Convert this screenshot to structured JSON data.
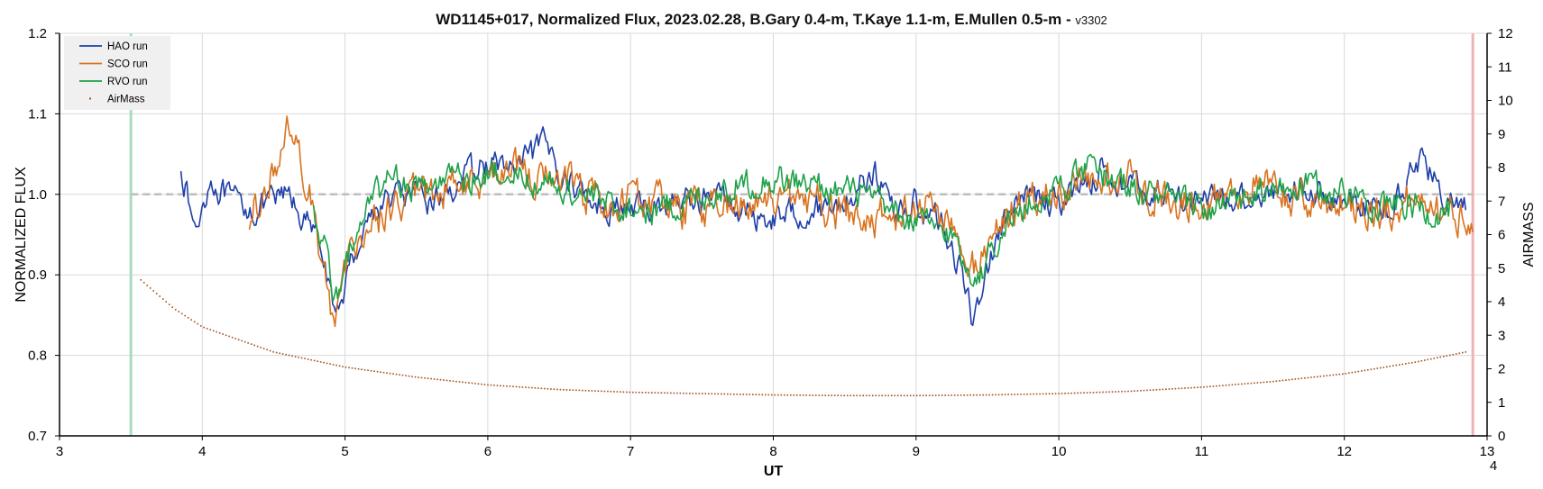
{
  "chart_data": {
    "type": "line",
    "title": "WD1145+017, Normalized Flux, 2023.02.28, B.Gary 0.4-m, T.Kaye 1.1-m, E.Mullen 0.5-m -",
    "title_suffix": "v3302",
    "xlabel": "UT",
    "ylabel": "NORMALIZED FLUX",
    "y2label": "AIRMASS",
    "xlim": [
      3,
      13
    ],
    "ylim": [
      0.7,
      1.2
    ],
    "y2lim": [
      0,
      12
    ],
    "x_ticks": [
      "3",
      "4",
      "5",
      "6",
      "7",
      "8",
      "9",
      "10",
      "11",
      "12",
      "13"
    ],
    "y_ticks": [
      "0.7",
      "0.8",
      "0.9",
      "1.0",
      "1.1",
      "1.2"
    ],
    "y2_ticks": [
      "0",
      "1",
      "2",
      "3",
      "4",
      "5",
      "6",
      "7",
      "8",
      "9",
      "10",
      "11",
      "12"
    ],
    "corner_note": "4",
    "grid": true,
    "legend_position": "top-left",
    "reference_line": {
      "y": 1.0,
      "color": "#bdbdbd"
    },
    "vertical_markers": [
      {
        "x": 3.5,
        "color": "#a8dcc4"
      },
      {
        "x": 12.9,
        "color": "#eeb4b4"
      }
    ],
    "series": [
      {
        "name": "HAO run",
        "color": "#1f3fa8",
        "x_start": 3.85,
        "x_end": 12.85,
        "anchors": [
          [
            3.85,
            1.04
          ],
          [
            3.95,
            0.95
          ],
          [
            4.05,
            1.02
          ],
          [
            4.2,
            0.99
          ],
          [
            4.4,
            0.98
          ],
          [
            4.6,
            1.0
          ],
          [
            4.75,
            0.96
          ],
          [
            4.85,
            0.93
          ],
          [
            4.92,
            0.84
          ],
          [
            5.0,
            0.89
          ],
          [
            5.15,
            0.97
          ],
          [
            5.35,
            1.0
          ],
          [
            5.6,
            0.99
          ],
          [
            5.85,
            1.02
          ],
          [
            6.0,
            1.04
          ],
          [
            6.2,
            1.03
          ],
          [
            6.4,
            1.06
          ],
          [
            6.55,
            1.02
          ],
          [
            6.75,
            0.99
          ],
          [
            7.0,
            0.98
          ],
          [
            7.3,
            0.99
          ],
          [
            7.6,
            1.0
          ],
          [
            7.9,
            0.97
          ],
          [
            8.2,
            0.98
          ],
          [
            8.5,
            0.99
          ],
          [
            8.7,
            1.03
          ],
          [
            8.85,
            0.98
          ],
          [
            9.0,
            0.99
          ],
          [
            9.2,
            0.96
          ],
          [
            9.32,
            0.9
          ],
          [
            9.4,
            0.84
          ],
          [
            9.48,
            0.9
          ],
          [
            9.6,
            0.96
          ],
          [
            9.8,
            1.0
          ],
          [
            10.0,
            0.99
          ],
          [
            10.3,
            1.03
          ],
          [
            10.5,
            1.01
          ],
          [
            10.8,
            1.0
          ],
          [
            11.1,
            0.99
          ],
          [
            11.4,
            1.0
          ],
          [
            11.7,
            1.01
          ],
          [
            12.0,
            0.99
          ],
          [
            12.3,
            0.98
          ],
          [
            12.55,
            1.05
          ],
          [
            12.7,
            0.99
          ],
          [
            12.85,
            0.98
          ]
        ],
        "noise": 0.018
      },
      {
        "name": "SCO run",
        "color": "#d9731f",
        "x_start": 4.33,
        "x_end": 12.9,
        "anchors": [
          [
            4.33,
            0.96
          ],
          [
            4.45,
            1.02
          ],
          [
            4.55,
            1.04
          ],
          [
            4.62,
            1.09
          ],
          [
            4.7,
            1.03
          ],
          [
            4.8,
            0.97
          ],
          [
            4.9,
            0.84
          ],
          [
            4.97,
            0.88
          ],
          [
            5.1,
            0.95
          ],
          [
            5.3,
            0.98
          ],
          [
            5.6,
            1.0
          ],
          [
            5.9,
            1.02
          ],
          [
            6.2,
            1.03
          ],
          [
            6.5,
            1.02
          ],
          [
            6.8,
            0.99
          ],
          [
            7.1,
            0.99
          ],
          [
            7.4,
            0.98
          ],
          [
            7.7,
            0.99
          ],
          [
            8.0,
            1.0
          ],
          [
            8.3,
            0.99
          ],
          [
            8.6,
            0.97
          ],
          [
            8.9,
            0.97
          ],
          [
            9.1,
            0.99
          ],
          [
            9.25,
            0.96
          ],
          [
            9.35,
            0.9
          ],
          [
            9.45,
            0.92
          ],
          [
            9.6,
            0.97
          ],
          [
            9.9,
            1.0
          ],
          [
            10.2,
            1.01
          ],
          [
            10.5,
            1.02
          ],
          [
            10.8,
            0.99
          ],
          [
            11.1,
            1.0
          ],
          [
            11.4,
            1.01
          ],
          [
            11.7,
            0.99
          ],
          [
            12.0,
            0.99
          ],
          [
            12.3,
            0.98
          ],
          [
            12.6,
            1.0
          ],
          [
            12.75,
            0.97
          ],
          [
            12.9,
            0.98
          ]
        ],
        "noise": 0.025
      },
      {
        "name": "RVO run",
        "color": "#1ea24a",
        "x_start": 4.78,
        "x_end": 12.75,
        "anchors": [
          [
            4.78,
            0.98
          ],
          [
            4.85,
            0.94
          ],
          [
            4.92,
            0.86
          ],
          [
            5.0,
            0.91
          ],
          [
            5.15,
            0.99
          ],
          [
            5.35,
            1.02
          ],
          [
            5.6,
            1.01
          ],
          [
            5.9,
            1.02
          ],
          [
            6.2,
            1.03
          ],
          [
            6.5,
            1.01
          ],
          [
            6.8,
            0.99
          ],
          [
            7.1,
            0.98
          ],
          [
            7.4,
            0.99
          ],
          [
            7.7,
            1.01
          ],
          [
            8.0,
            1.02
          ],
          [
            8.3,
            1.01
          ],
          [
            8.6,
            1.0
          ],
          [
            8.9,
            0.97
          ],
          [
            9.1,
            0.96
          ],
          [
            9.25,
            0.95
          ],
          [
            9.35,
            0.91
          ],
          [
            9.45,
            0.9
          ],
          [
            9.6,
            0.96
          ],
          [
            9.9,
            1.0
          ],
          [
            10.2,
            1.03
          ],
          [
            10.5,
            1.01
          ],
          [
            10.8,
            0.99
          ],
          [
            11.1,
            0.98
          ],
          [
            11.4,
            1.0
          ],
          [
            11.7,
            1.01
          ],
          [
            12.0,
            1.0
          ],
          [
            12.3,
            0.99
          ],
          [
            12.6,
            0.98
          ],
          [
            12.75,
            0.98
          ]
        ],
        "noise": 0.02
      },
      {
        "name": "AirMass",
        "color": "#a0521a",
        "style": "dots",
        "axis": "right",
        "x_start": 3.57,
        "x_end": 12.85,
        "anchors": [
          [
            3.57,
            4.65
          ],
          [
            3.8,
            3.8
          ],
          [
            4.0,
            3.25
          ],
          [
            4.5,
            2.5
          ],
          [
            5.0,
            2.05
          ],
          [
            5.5,
            1.75
          ],
          [
            6.0,
            1.52
          ],
          [
            6.5,
            1.38
          ],
          [
            7.0,
            1.3
          ],
          [
            7.5,
            1.26
          ],
          [
            8.0,
            1.22
          ],
          [
            8.5,
            1.2
          ],
          [
            9.0,
            1.2
          ],
          [
            9.5,
            1.22
          ],
          [
            10.0,
            1.26
          ],
          [
            10.5,
            1.33
          ],
          [
            11.0,
            1.45
          ],
          [
            11.5,
            1.62
          ],
          [
            12.0,
            1.85
          ],
          [
            12.5,
            2.2
          ],
          [
            12.85,
            2.5
          ]
        ]
      }
    ]
  }
}
